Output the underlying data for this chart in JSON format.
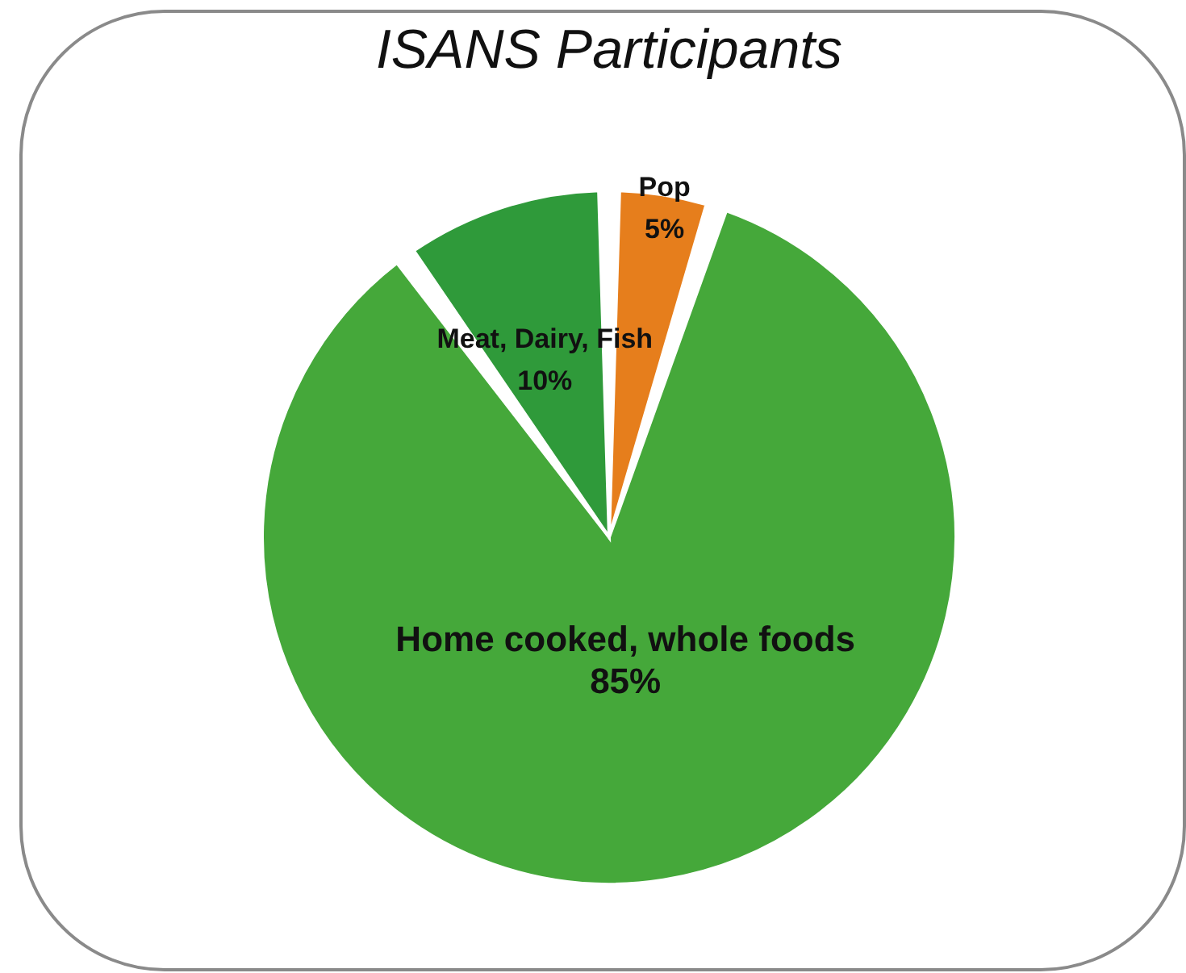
{
  "chart_data": {
    "type": "pie",
    "title": "ISANS Participants",
    "categories": [
      "Pop",
      "Home cooked, whole foods",
      "Meat, Dairy, Fish"
    ],
    "values": [
      5,
      85,
      10
    ],
    "colors": [
      "#e67e1c",
      "#45a83a",
      "#2f9a3a"
    ],
    "value_labels": [
      "5%",
      "85%",
      "10%"
    ],
    "legend": false
  }
}
